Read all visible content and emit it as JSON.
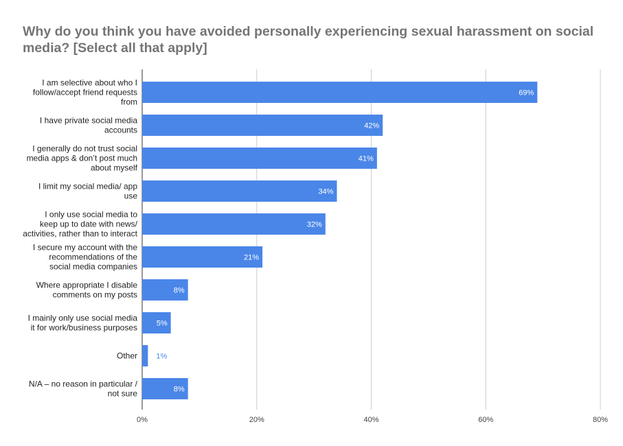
{
  "chart_data": {
    "type": "bar",
    "orientation": "horizontal",
    "title": "Why do you think you have avoided personally experiencing sexual harassment on social media? [Select all that apply]",
    "categories": [
      [
        "I am selective about who I",
        "follow/accept friend requests",
        "from"
      ],
      [
        "I have private social media",
        "accounts"
      ],
      [
        "I generally do not trust social",
        "media apps & don’t post much",
        "about myself"
      ],
      [
        "I limit my social media/ app",
        "use"
      ],
      [
        "I only use social media to",
        "keep up to date with news/",
        "activities, rather than to interact"
      ],
      [
        "I secure my account with the",
        "recommendations of the",
        "social media companies"
      ],
      [
        "Where appropriate I disable",
        "comments on my posts"
      ],
      [
        "I mainly only use social media",
        "it for work/business purposes"
      ],
      [
        "Other"
      ],
      [
        "N/A – no reason in particular /",
        "not sure"
      ]
    ],
    "values": [
      69,
      42,
      41,
      34,
      32,
      21,
      8,
      5,
      1,
      8
    ],
    "value_labels": [
      "69%",
      "42%",
      "41%",
      "34%",
      "32%",
      "21%",
      "8%",
      "5%",
      "1%",
      "8%"
    ],
    "xlim": [
      0,
      80
    ],
    "xticks": [
      0,
      20,
      40,
      60,
      80
    ],
    "xtick_labels": [
      "0%",
      "20%",
      "40%",
      "60%",
      "80%"
    ],
    "grid": true,
    "bar_color": "#4a86e8",
    "legend": "none"
  }
}
